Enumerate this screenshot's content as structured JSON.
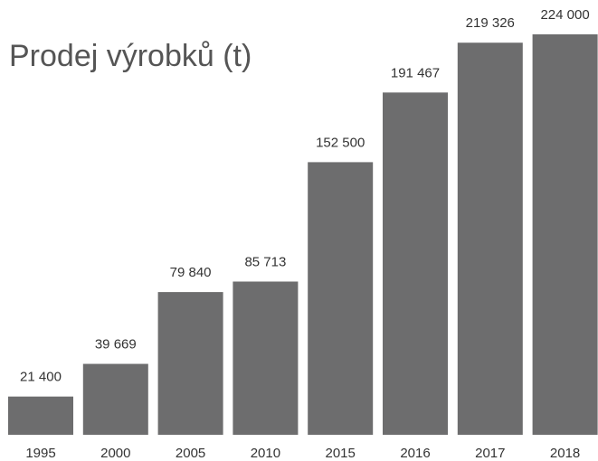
{
  "chart_data": {
    "type": "bar",
    "title": "Prodej výrobků (t)",
    "categories": [
      "1995",
      "2000",
      "2005",
      "2010",
      "2015",
      "2016",
      "2017",
      "2018"
    ],
    "values": [
      21400,
      39669,
      79840,
      85713,
      152500,
      191467,
      219326,
      224000
    ],
    "value_labels": [
      "21 400",
      "39 669",
      "79 840",
      "85 713",
      "152 500",
      "191 467",
      "219 326",
      "224 000"
    ],
    "color": "#6d6d6e"
  }
}
